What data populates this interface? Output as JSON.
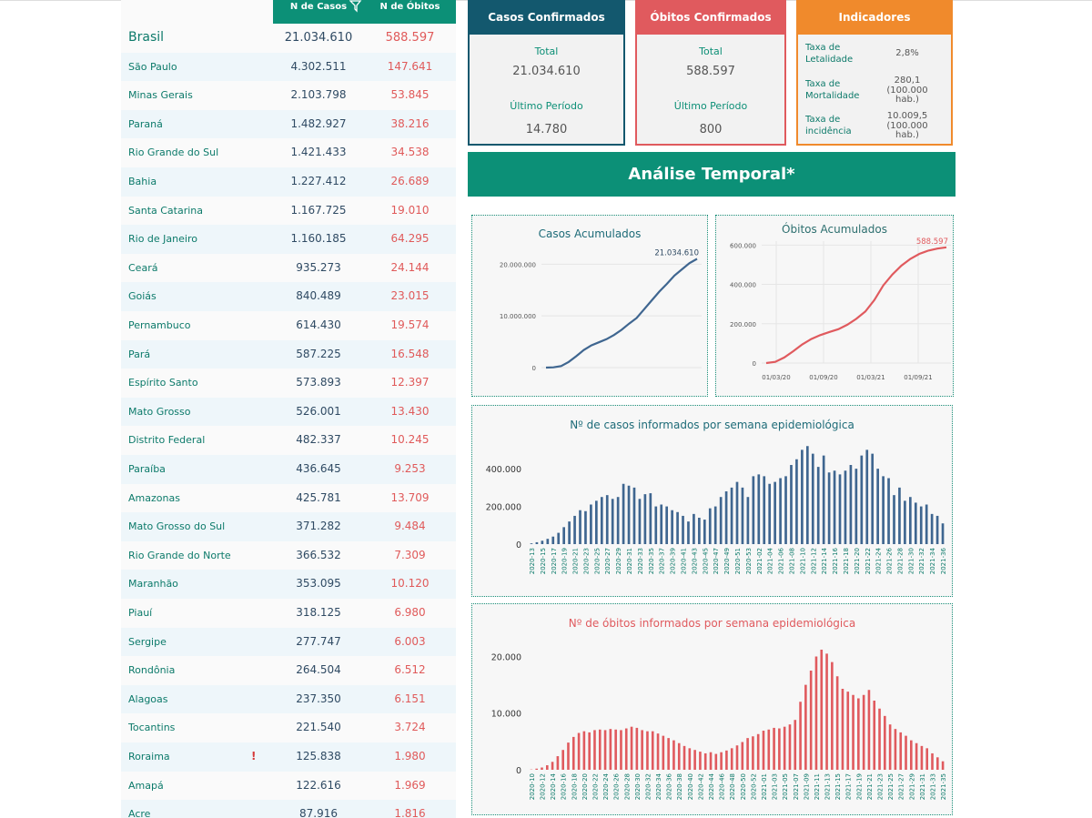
{
  "table": {
    "header_cases": "N de Casos",
    "header_deaths": "N de Óbitos",
    "rows": [
      {
        "name": "Brasil",
        "cases": "21.034.610",
        "deaths": "588.597"
      },
      {
        "name": "São Paulo",
        "cases": "4.302.511",
        "deaths": "147.641"
      },
      {
        "name": "Minas Gerais",
        "cases": "2.103.798",
        "deaths": "53.845"
      },
      {
        "name": "Paraná",
        "cases": "1.482.927",
        "deaths": "38.216"
      },
      {
        "name": "Rio Grande do Sul",
        "cases": "1.421.433",
        "deaths": "34.538"
      },
      {
        "name": "Bahia",
        "cases": "1.227.412",
        "deaths": "26.689"
      },
      {
        "name": "Santa Catarina",
        "cases": "1.167.725",
        "deaths": "19.010"
      },
      {
        "name": "Rio de Janeiro",
        "cases": "1.160.185",
        "deaths": "64.295"
      },
      {
        "name": "Ceará",
        "cases": "935.273",
        "deaths": "24.144"
      },
      {
        "name": "Goiás",
        "cases": "840.489",
        "deaths": "23.015"
      },
      {
        "name": "Pernambuco",
        "cases": "614.430",
        "deaths": "19.574"
      },
      {
        "name": "Pará",
        "cases": "587.225",
        "deaths": "16.548"
      },
      {
        "name": "Espírito Santo",
        "cases": "573.893",
        "deaths": "12.397"
      },
      {
        "name": "Mato Grosso",
        "cases": "526.001",
        "deaths": "13.430"
      },
      {
        "name": "Distrito Federal",
        "cases": "482.337",
        "deaths": "10.245"
      },
      {
        "name": "Paraíba",
        "cases": "436.645",
        "deaths": "9.253"
      },
      {
        "name": "Amazonas",
        "cases": "425.781",
        "deaths": "13.709"
      },
      {
        "name": "Mato Grosso do Sul",
        "cases": "371.282",
        "deaths": "9.484"
      },
      {
        "name": "Rio Grande do Norte",
        "cases": "366.532",
        "deaths": "7.309"
      },
      {
        "name": "Maranhão",
        "cases": "353.095",
        "deaths": "10.120"
      },
      {
        "name": "Piauí",
        "cases": "318.125",
        "deaths": "6.980"
      },
      {
        "name": "Sergipe",
        "cases": "277.747",
        "deaths": "6.003"
      },
      {
        "name": "Rondônia",
        "cases": "264.504",
        "deaths": "6.512"
      },
      {
        "name": "Alagoas",
        "cases": "237.350",
        "deaths": "6.151"
      },
      {
        "name": "Tocantins",
        "cases": "221.540",
        "deaths": "3.724"
      },
      {
        "name": "Roraima",
        "cases": "125.838",
        "deaths": "1.980",
        "flag": "!"
      },
      {
        "name": "Amapá",
        "cases": "122.616",
        "deaths": "1.969"
      },
      {
        "name": "Acre",
        "cases": "87.916",
        "deaths": "1.816"
      }
    ]
  },
  "cards": {
    "cases": {
      "title": "Casos Confirmados",
      "total_label": "Total",
      "total": "21.034.610",
      "period_label": "Último Período",
      "period": "14.780"
    },
    "deaths": {
      "title": "Óbitos Confirmados",
      "total_label": "Total",
      "total": "588.597",
      "period_label": "Último Período",
      "period": "800"
    },
    "indicators": {
      "title": "Indicadores",
      "items": [
        {
          "label": "Taxa de Letalidade",
          "value": "2,8%"
        },
        {
          "label": "Taxa de Mortalidade",
          "value": "280,1",
          "unit": "(100.000 hab.)"
        },
        {
          "label": "Taxa de incidência",
          "value": "10.009,5",
          "unit": "(100.000 hab.)"
        }
      ]
    }
  },
  "banner": {
    "title": "Análise Temporal*"
  },
  "colors": {
    "teal": "#0c9077",
    "navy": "#13586e",
    "red": "#e05a5e",
    "orange": "#f08a2c",
    "cases_series": "#3f6690",
    "deaths_series": "#e05a5e"
  },
  "chart_data": [
    {
      "type": "line",
      "title": "Casos Acumulados",
      "y_ticks": [
        "0",
        "10.000.000",
        "20.000.000"
      ],
      "ylim": [
        0,
        22000000
      ],
      "last_label": "21.034.610",
      "x": [
        0,
        1,
        2,
        3,
        4,
        5,
        6,
        7,
        8,
        9,
        10,
        11,
        12,
        13,
        14,
        15,
        16,
        17,
        18,
        19,
        20
      ],
      "values": [
        0,
        50000,
        300000,
        1100000,
        2200000,
        3400000,
        4300000,
        4900000,
        5500000,
        6300000,
        7300000,
        8500000,
        9600000,
        11300000,
        13000000,
        14700000,
        16200000,
        17800000,
        19000000,
        20200000,
        21034610
      ]
    },
    {
      "type": "line",
      "title": "Óbitos Acumulados",
      "x_ticks": [
        "01/03/20",
        "01/09/20",
        "01/03/21",
        "01/09/21"
      ],
      "y_ticks": [
        "0",
        "200.000",
        "400.000",
        "600.000"
      ],
      "ylim": [
        0,
        620000
      ],
      "last_label": "588.597",
      "x": [
        0,
        1,
        2,
        3,
        4,
        5,
        6,
        7,
        8,
        9,
        10,
        11,
        12,
        13,
        14,
        15,
        16,
        17,
        18,
        19,
        20
      ],
      "values": [
        0,
        6000,
        28000,
        60000,
        95000,
        122000,
        142000,
        158000,
        172000,
        195000,
        225000,
        262000,
        320000,
        395000,
        450000,
        495000,
        530000,
        555000,
        572000,
        582000,
        588597
      ]
    },
    {
      "type": "bar",
      "title": "Nº de casos informados por semana epidemiológica",
      "y_ticks": [
        "0",
        "200.000",
        "400.000"
      ],
      "ylim": [
        0,
        560000
      ],
      "categories": [
        "2020-13",
        "2020-14",
        "2020-15",
        "2020-16",
        "2020-17",
        "2020-18",
        "2020-19",
        "2020-20",
        "2020-21",
        "2020-22",
        "2020-23",
        "2020-24",
        "2020-25",
        "2020-26",
        "2020-27",
        "2020-28",
        "2020-29",
        "2020-30",
        "2020-31",
        "2020-32",
        "2020-33",
        "2020-34",
        "2020-35",
        "2020-36",
        "2020-37",
        "2020-38",
        "2020-39",
        "2020-40",
        "2020-41",
        "2020-42",
        "2020-43",
        "2020-44",
        "2020-45",
        "2020-46",
        "2020-47",
        "2020-48",
        "2020-49",
        "2020-50",
        "2020-51",
        "2020-52",
        "2020-53",
        "2021-01",
        "2021-02",
        "2021-03",
        "2021-04",
        "2021-05",
        "2021-06",
        "2021-07",
        "2021-08",
        "2021-09",
        "2021-10",
        "2021-11",
        "2021-12",
        "2021-13",
        "2021-14",
        "2021-15",
        "2021-16",
        "2021-17",
        "2021-18",
        "2021-19",
        "2021-20",
        "2021-21",
        "2021-22",
        "2021-23",
        "2021-24",
        "2021-25",
        "2021-26",
        "2021-27",
        "2021-28",
        "2021-29",
        "2021-30",
        "2021-31",
        "2021-32",
        "2021-33",
        "2021-34",
        "2021-35",
        "2021-36"
      ],
      "values": [
        4000,
        10000,
        18000,
        28000,
        40000,
        60000,
        90000,
        120000,
        150000,
        180000,
        175000,
        210000,
        230000,
        250000,
        260000,
        240000,
        250000,
        320000,
        310000,
        300000,
        240000,
        265000,
        270000,
        200000,
        210000,
        200000,
        180000,
        170000,
        150000,
        120000,
        160000,
        140000,
        130000,
        190000,
        200000,
        250000,
        280000,
        300000,
        330000,
        300000,
        250000,
        360000,
        370000,
        360000,
        320000,
        330000,
        350000,
        360000,
        420000,
        450000,
        500000,
        520000,
        480000,
        410000,
        470000,
        380000,
        390000,
        370000,
        390000,
        420000,
        400000,
        470000,
        500000,
        480000,
        400000,
        360000,
        350000,
        260000,
        300000,
        230000,
        250000,
        220000,
        200000,
        210000,
        160000,
        150000,
        110000
      ]
    },
    {
      "type": "bar",
      "title": "Nº de óbitos informados por semana epidemiológica",
      "y_ticks": [
        "0",
        "10.000",
        "20.000"
      ],
      "ylim": [
        0,
        22000
      ],
      "categories": [
        "2020-10",
        "2020-11",
        "2020-12",
        "2020-13",
        "2020-14",
        "2020-15",
        "2020-16",
        "2020-17",
        "2020-18",
        "2020-19",
        "2020-20",
        "2020-21",
        "2020-22",
        "2020-23",
        "2020-24",
        "2020-25",
        "2020-26",
        "2020-27",
        "2020-28",
        "2020-29",
        "2020-30",
        "2020-31",
        "2020-32",
        "2020-33",
        "2020-34",
        "2020-35",
        "2020-36",
        "2020-37",
        "2020-38",
        "2020-39",
        "2020-40",
        "2020-41",
        "2020-42",
        "2020-43",
        "2020-44",
        "2020-45",
        "2020-46",
        "2020-47",
        "2020-48",
        "2020-49",
        "2020-50",
        "2020-51",
        "2020-52",
        "2020-53",
        "2021-01",
        "2021-02",
        "2021-03",
        "2021-04",
        "2021-05",
        "2021-06",
        "2021-07",
        "2021-08",
        "2021-09",
        "2021-10",
        "2021-11",
        "2021-12",
        "2021-13",
        "2021-14",
        "2021-15",
        "2021-16",
        "2021-17",
        "2021-18",
        "2021-19",
        "2021-20",
        "2021-21",
        "2021-22",
        "2021-23",
        "2021-24",
        "2021-25",
        "2021-26",
        "2021-27",
        "2021-28",
        "2021-29",
        "2021-30",
        "2021-31",
        "2021-32",
        "2021-33",
        "2021-34",
        "2021-35"
      ],
      "values": [
        50,
        200,
        400,
        800,
        1400,
        2400,
        3500,
        4800,
        5800,
        6500,
        6800,
        6600,
        7000,
        7100,
        7000,
        7200,
        7100,
        7000,
        7300,
        7600,
        7400,
        7000,
        6800,
        6800,
        6400,
        6000,
        5600,
        5200,
        4700,
        4200,
        3800,
        3500,
        3200,
        2900,
        3100,
        2800,
        3100,
        3400,
        3800,
        4300,
        4900,
        5600,
        5900,
        6300,
        6900,
        7100,
        7400,
        7300,
        7600,
        8000,
        8800,
        12000,
        15000,
        17500,
        20000,
        21200,
        20500,
        19000,
        16500,
        14300,
        13800,
        13200,
        12600,
        13200,
        14100,
        12200,
        10800,
        9500,
        8000,
        7200,
        6600,
        6000,
        5200,
        4700,
        4200,
        3800,
        2900,
        2200,
        1500
      ]
    }
  ]
}
